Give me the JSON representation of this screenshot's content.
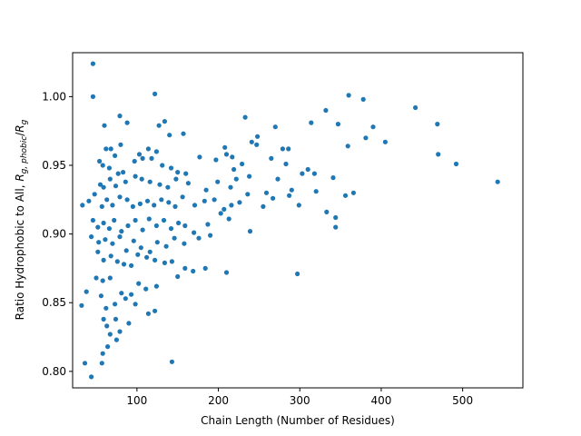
{
  "chart_data": {
    "type": "scatter",
    "xlabel": "Chain Length (Number of Residues)",
    "ylabel_main": "Ratio Hydrophobic to All, ",
    "ylabel_math": {
      "R1": "R",
      "sub1": "g, phobic",
      "slash": "/",
      "R2": "R",
      "sub2": "g"
    },
    "xlim": [
      21,
      574
    ],
    "ylim": [
      0.788,
      1.032
    ],
    "x_ticks": [
      100,
      200,
      300,
      400,
      500
    ],
    "y_ticks": [
      0.8,
      0.85,
      0.9,
      0.95,
      1.0
    ],
    "x_tick_labels": [
      "100",
      "200",
      "300",
      "400",
      "500"
    ],
    "y_tick_labels": [
      "0.80",
      "0.85",
      "0.90",
      "0.95",
      "1.00"
    ],
    "grid": false,
    "colors": {
      "point": "#1f77b4"
    },
    "series": [
      {
        "points": [
          [
            46,
            1.024
          ],
          [
            46,
            1.0
          ],
          [
            122,
            1.002
          ],
          [
            360,
            1.001
          ],
          [
            378,
            0.998
          ],
          [
            442,
            0.992
          ],
          [
            332,
            0.99
          ],
          [
            79,
            0.986
          ],
          [
            233,
            0.985
          ],
          [
            134,
            0.982
          ],
          [
            248,
            0.971
          ],
          [
            88,
            0.981
          ],
          [
            314,
            0.981
          ],
          [
            270,
            0.978
          ],
          [
            127,
            0.979
          ],
          [
            60,
            0.979
          ],
          [
            390,
            0.978
          ],
          [
            347,
            0.98
          ],
          [
            469,
            0.98
          ],
          [
            157,
            0.973
          ],
          [
            140,
            0.972
          ],
          [
            381,
            0.97
          ],
          [
            405,
            0.967
          ],
          [
            62,
            0.962
          ],
          [
            68,
            0.962
          ],
          [
            80,
            0.965
          ],
          [
            73,
            0.957
          ],
          [
            103,
            0.958
          ],
          [
            114,
            0.962
          ],
          [
            124,
            0.96
          ],
          [
            208,
            0.963
          ],
          [
            210,
            0.958
          ],
          [
            217,
            0.956
          ],
          [
            241,
            0.967
          ],
          [
            279,
            0.962
          ],
          [
            286,
            0.962
          ],
          [
            359,
            0.964
          ],
          [
            470,
            0.958
          ],
          [
            492,
            0.951
          ],
          [
            54,
            0.953
          ],
          [
            58,
            0.95
          ],
          [
            66,
            0.948
          ],
          [
            77,
            0.944
          ],
          [
            83,
            0.945
          ],
          [
            97,
            0.953
          ],
          [
            107,
            0.955
          ],
          [
            118,
            0.955
          ],
          [
            131,
            0.95
          ],
          [
            142,
            0.948
          ],
          [
            150,
            0.945
          ],
          [
            160,
            0.944
          ],
          [
            177,
            0.956
          ],
          [
            197,
            0.954
          ],
          [
            219,
            0.947
          ],
          [
            229,
            0.951
          ],
          [
            247,
            0.965
          ],
          [
            265,
            0.955
          ],
          [
            283,
            0.951
          ],
          [
            310,
            0.947
          ],
          [
            318,
            0.944
          ],
          [
            55,
            0.936
          ],
          [
            59,
            0.934
          ],
          [
            67,
            0.94
          ],
          [
            74,
            0.935
          ],
          [
            86,
            0.938
          ],
          [
            98,
            0.942
          ],
          [
            106,
            0.94
          ],
          [
            116,
            0.938
          ],
          [
            128,
            0.936
          ],
          [
            138,
            0.934
          ],
          [
            148,
            0.94
          ],
          [
            163,
            0.937
          ],
          [
            185,
            0.932
          ],
          [
            199,
            0.938
          ],
          [
            215,
            0.934
          ],
          [
            222,
            0.94
          ],
          [
            238,
            0.942
          ],
          [
            259,
            0.93
          ],
          [
            273,
            0.94
          ],
          [
            287,
            0.928
          ],
          [
            303,
            0.944
          ],
          [
            320,
            0.931
          ],
          [
            341,
            0.941
          ],
          [
            356,
            0.928
          ],
          [
            366,
            0.93
          ],
          [
            543,
            0.938
          ],
          [
            33,
            0.921
          ],
          [
            41,
            0.924
          ],
          [
            48,
            0.929
          ],
          [
            57,
            0.92
          ],
          [
            63,
            0.925
          ],
          [
            70,
            0.921
          ],
          [
            79,
            0.927
          ],
          [
            88,
            0.925
          ],
          [
            95,
            0.92
          ],
          [
            104,
            0.922
          ],
          [
            113,
            0.924
          ],
          [
            121,
            0.921
          ],
          [
            130,
            0.925
          ],
          [
            139,
            0.923
          ],
          [
            147,
            0.92
          ],
          [
            156,
            0.927
          ],
          [
            171,
            0.921
          ],
          [
            183,
            0.924
          ],
          [
            195,
            0.925
          ],
          [
            207,
            0.918
          ],
          [
            216,
            0.921
          ],
          [
            226,
            0.923
          ],
          [
            236,
            0.929
          ],
          [
            255,
            0.92
          ],
          [
            267,
            0.926
          ],
          [
            290,
            0.932
          ],
          [
            299,
            0.921
          ],
          [
            333,
            0.916
          ],
          [
            344,
            0.912
          ],
          [
            46,
            0.91
          ],
          [
            52,
            0.905
          ],
          [
            59,
            0.908
          ],
          [
            66,
            0.904
          ],
          [
            72,
            0.91
          ],
          [
            81,
            0.902
          ],
          [
            89,
            0.906
          ],
          [
            98,
            0.91
          ],
          [
            107,
            0.903
          ],
          [
            115,
            0.911
          ],
          [
            124,
            0.906
          ],
          [
            133,
            0.91
          ],
          [
            142,
            0.904
          ],
          [
            151,
            0.908
          ],
          [
            159,
            0.906
          ],
          [
            170,
            0.901
          ],
          [
            187,
            0.907
          ],
          [
            203,
            0.915
          ],
          [
            213,
            0.911
          ],
          [
            239,
            0.902
          ],
          [
            44,
            0.898
          ],
          [
            53,
            0.894
          ],
          [
            61,
            0.896
          ],
          [
            70,
            0.893
          ],
          [
            79,
            0.898
          ],
          [
            87,
            0.888
          ],
          [
            96,
            0.895
          ],
          [
            105,
            0.89
          ],
          [
            116,
            0.887
          ],
          [
            125,
            0.894
          ],
          [
            136,
            0.891
          ],
          [
            146,
            0.897
          ],
          [
            158,
            0.893
          ],
          [
            176,
            0.897
          ],
          [
            190,
            0.899
          ],
          [
            344,
            0.905
          ],
          [
            52,
            0.887
          ],
          [
            59,
            0.881
          ],
          [
            68,
            0.884
          ],
          [
            76,
            0.88
          ],
          [
            84,
            0.878
          ],
          [
            93,
            0.877
          ],
          [
            101,
            0.885
          ],
          [
            112,
            0.883
          ],
          [
            122,
            0.881
          ],
          [
            134,
            0.879
          ],
          [
            143,
            0.88
          ],
          [
            159,
            0.875
          ],
          [
            169,
            0.873
          ],
          [
            184,
            0.875
          ],
          [
            210,
            0.872
          ],
          [
            297,
            0.871
          ],
          [
            50,
            0.868
          ],
          [
            58,
            0.866
          ],
          [
            67,
            0.868
          ],
          [
            81,
            0.857
          ],
          [
            93,
            0.856
          ],
          [
            102,
            0.864
          ],
          [
            111,
            0.86
          ],
          [
            124,
            0.862
          ],
          [
            150,
            0.869
          ],
          [
            32,
            0.848
          ],
          [
            38,
            0.858
          ],
          [
            56,
            0.855
          ],
          [
            62,
            0.846
          ],
          [
            73,
            0.849
          ],
          [
            86,
            0.853
          ],
          [
            98,
            0.849
          ],
          [
            114,
            0.842
          ],
          [
            122,
            0.844
          ],
          [
            59,
            0.838
          ],
          [
            63,
            0.833
          ],
          [
            74,
            0.838
          ],
          [
            90,
            0.835
          ],
          [
            67,
            0.827
          ],
          [
            79,
            0.829
          ],
          [
            64,
            0.818
          ],
          [
            75,
            0.823
          ],
          [
            58,
            0.813
          ],
          [
            36,
            0.806
          ],
          [
            57,
            0.806
          ],
          [
            143,
            0.807
          ],
          [
            44,
            0.796
          ]
        ]
      }
    ]
  }
}
